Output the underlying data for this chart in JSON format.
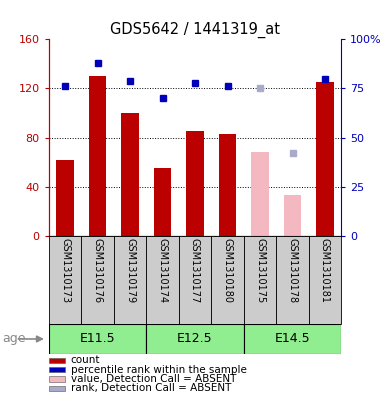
{
  "title": "GDS5642 / 1441319_at",
  "samples": [
    "GSM1310173",
    "GSM1310176",
    "GSM1310179",
    "GSM1310174",
    "GSM1310177",
    "GSM1310180",
    "GSM1310175",
    "GSM1310178",
    "GSM1310181"
  ],
  "count_values": [
    62,
    130,
    100,
    55,
    85,
    83,
    null,
    null,
    125
  ],
  "count_values_absent": [
    null,
    null,
    null,
    null,
    null,
    null,
    68,
    33,
    null
  ],
  "rank_values": [
    76,
    88,
    79,
    70,
    78,
    76,
    null,
    null,
    80
  ],
  "rank_values_absent": [
    null,
    null,
    null,
    null,
    null,
    null,
    75,
    42,
    null
  ],
  "ylim_left": [
    0,
    160
  ],
  "ylim_right": [
    0,
    100
  ],
  "yticks_left": [
    0,
    40,
    80,
    120,
    160
  ],
  "yticks_right": [
    0,
    25,
    50,
    75,
    100
  ],
  "ytick_labels_right": [
    "0",
    "25",
    "50",
    "75",
    "100%"
  ],
  "bar_color_red": "#BB0000",
  "bar_color_red_absent": "#F4B8C0",
  "bar_color_blue": "#0000BB",
  "bar_color_blue_absent": "#AAAACC",
  "sample_bg_color": "#CCCCCC",
  "light_green": "#90EE90",
  "groups": [
    {
      "label": "E11.5",
      "start": 0,
      "end": 3
    },
    {
      "label": "E12.5",
      "start": 3,
      "end": 6
    },
    {
      "label": "E14.5",
      "start": 6,
      "end": 9
    }
  ],
  "legend_items": [
    {
      "color": "#BB0000",
      "label": "count"
    },
    {
      "color": "#0000BB",
      "label": "percentile rank within the sample"
    },
    {
      "color": "#F4B8C0",
      "label": "value, Detection Call = ABSENT"
    },
    {
      "color": "#AAAACC",
      "label": "rank, Detection Call = ABSENT"
    }
  ]
}
